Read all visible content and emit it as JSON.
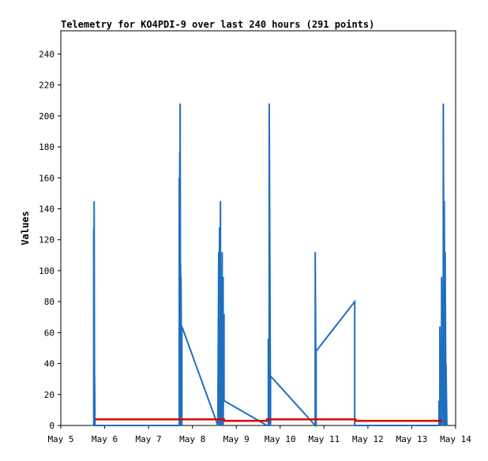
{
  "chart_data": {
    "type": "line",
    "title": "Telemetry for KO4PDI-9 over last 240 hours (291 points)",
    "xlabel": "",
    "ylabel": "Values",
    "xlim": [
      "May 5",
      "May 14"
    ],
    "ylim": [
      0,
      255
    ],
    "yticks": [
      0,
      20,
      40,
      60,
      80,
      100,
      120,
      140,
      160,
      180,
      200,
      220,
      240
    ],
    "xticks": [
      "May 5",
      "May 6",
      "May 7",
      "May 8",
      "May 9",
      "May 10",
      "May 11",
      "May 12",
      "May 13",
      "May 14"
    ],
    "grid": false,
    "legend": "none",
    "series": [
      {
        "color": "#1f6fbf",
        "x": [
          5.75,
          5.75,
          5.76,
          5.76,
          5.77,
          5.77,
          5.78,
          5.78,
          7.7,
          7.7,
          7.71,
          7.71,
          7.72,
          7.72,
          7.73,
          7.73,
          7.74,
          7.74,
          7.76,
          7.76,
          8.58,
          8.6,
          8.6,
          8.62,
          8.62,
          8.64,
          8.64,
          8.66,
          8.66,
          8.68,
          8.68,
          8.7,
          8.7,
          8.72,
          8.72,
          9.7,
          9.73,
          9.73,
          9.75,
          9.75,
          9.78,
          9.78,
          10.8,
          10.8,
          10.82,
          10.82,
          11.7,
          11.7,
          13.62,
          13.62,
          13.64,
          13.64,
          13.66,
          13.66,
          13.68,
          13.68,
          13.72,
          13.72,
          13.74,
          13.74,
          13.76,
          13.76,
          13.78,
          13.78,
          13.8,
          13.8
        ],
        "y": [
          0,
          128,
          0,
          145,
          0,
          32,
          0,
          0,
          0,
          160,
          0,
          177,
          0,
          208,
          0,
          104,
          0,
          96,
          0,
          64,
          0,
          112,
          0,
          128,
          0,
          145,
          0,
          24,
          0,
          112,
          0,
          96,
          0,
          72,
          16,
          0,
          0,
          56,
          0,
          208,
          0,
          32,
          0,
          112,
          0,
          48,
          80,
          0,
          0,
          16,
          0,
          64,
          0,
          32,
          0,
          96,
          0,
          208,
          0,
          145,
          0,
          112,
          0,
          40,
          0,
          0
        ]
      },
      {
        "color": "#dd0000",
        "x": [
          5.78,
          8.72,
          8.72,
          9.7,
          9.7,
          9.75,
          9.75,
          11.72,
          11.72,
          13.7
        ],
        "y": [
          4,
          4,
          3,
          3,
          4,
          4,
          4,
          4,
          3,
          3
        ]
      }
    ]
  }
}
